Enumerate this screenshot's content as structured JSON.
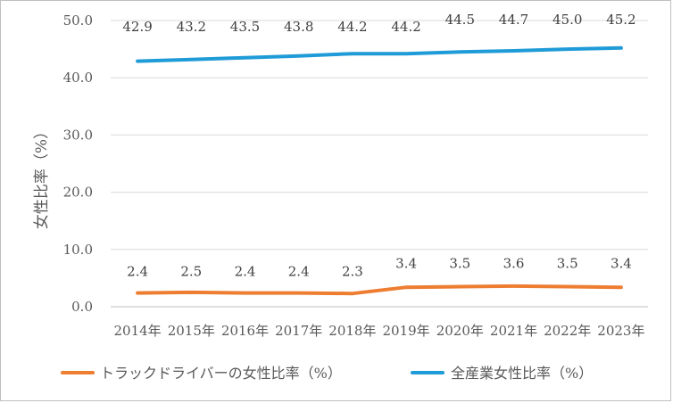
{
  "chart_data": {
    "type": "line",
    "title": "",
    "xlabel": "",
    "ylabel": "女性比率（%）",
    "ylim": [
      0,
      50
    ],
    "yticks": [
      0,
      10,
      20,
      30,
      40,
      50
    ],
    "ytick_labels": [
      "0.0",
      "10.0",
      "20.0",
      "30.0",
      "40.0",
      "50.0"
    ],
    "grid": true,
    "legend_position": "bottom",
    "categories": [
      "2014年",
      "2015年",
      "2016年",
      "2017年",
      "2018年",
      "2019年",
      "2020年",
      "2021年",
      "2022年",
      "2023年"
    ],
    "series": [
      {
        "name": "トラックドライバーの女性比率（%）",
        "color": "#ED7D31",
        "values": [
          2.4,
          2.5,
          2.4,
          2.4,
          2.3,
          3.4,
          3.5,
          3.6,
          3.5,
          3.4
        ],
        "labels": [
          "2.4",
          "2.5",
          "2.4",
          "2.4",
          "2.3",
          "3.4",
          "3.5",
          "3.6",
          "3.5",
          "3.4"
        ]
      },
      {
        "name": "全産業女性比率（%）",
        "color": "#1F9BD7",
        "values": [
          42.9,
          43.2,
          43.5,
          43.8,
          44.2,
          44.2,
          44.5,
          44.7,
          45.0,
          45.2
        ],
        "labels": [
          "42.9",
          "43.2",
          "43.5",
          "43.8",
          "44.2",
          "44.2",
          "44.5",
          "44.7",
          "45.0",
          "45.2"
        ]
      }
    ]
  }
}
